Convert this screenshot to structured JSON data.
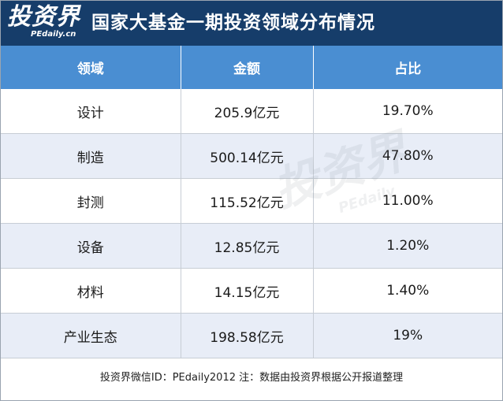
{
  "header": {
    "logo_text": "投资界",
    "logo_sub": "PEdaily.cn",
    "title": "国家大基金一期投资领域分布情况"
  },
  "table": {
    "columns": [
      "领域",
      "金额",
      "占比"
    ],
    "rows": [
      [
        "设计",
        "205.9亿元",
        "19.70%"
      ],
      [
        "制造",
        "500.14亿元",
        "47.80%"
      ],
      [
        "封测",
        "115.52亿元",
        "11.00%"
      ],
      [
        "设备",
        "12.85亿元",
        "1.20%"
      ],
      [
        "材料",
        "14.15亿元",
        "1.40%"
      ],
      [
        "产业生态",
        "198.58亿元",
        "19%"
      ]
    ]
  },
  "footer": {
    "text": "投资界微信ID：PEdaily2012    注：数据由投资界根据公开报道整理"
  },
  "watermark": {
    "text": "投资界",
    "sub": "PEdaily"
  },
  "colors": {
    "header_bg": "#163d6a",
    "table_header_bg": "#4a8ed2",
    "stripe_bg": "#e8edf7"
  }
}
